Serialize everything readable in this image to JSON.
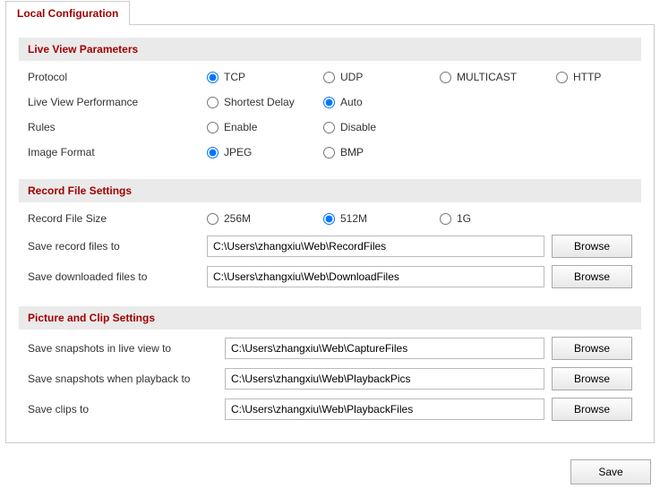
{
  "colors": {
    "accent": "#a00000",
    "section_bg": "#eaeaea",
    "border": "#cccccc",
    "button_border": "#aaaaaa",
    "input_border": "#bbbbbb"
  },
  "tab": {
    "label": "Local Configuration"
  },
  "sections": {
    "liveView": {
      "title": "Live View Parameters",
      "protocol": {
        "label": "Protocol",
        "options": {
          "tcp": "TCP",
          "udp": "UDP",
          "multicast": "MULTICAST",
          "http": "HTTP"
        },
        "selected": "tcp"
      },
      "performance": {
        "label": "Live View Performance",
        "options": {
          "shortest": "Shortest Delay",
          "auto": "Auto"
        },
        "selected": "auto"
      },
      "rules": {
        "label": "Rules",
        "options": {
          "enable": "Enable",
          "disable": "Disable"
        },
        "selected": ""
      },
      "imageFormat": {
        "label": "Image Format",
        "options": {
          "jpeg": "JPEG",
          "bmp": "BMP"
        },
        "selected": "jpeg"
      }
    },
    "record": {
      "title": "Record File Settings",
      "fileSize": {
        "label": "Record File Size",
        "options": {
          "s256": "256M",
          "s512": "512M",
          "s1g": "1G"
        },
        "selected": "s512"
      },
      "saveRecord": {
        "label": "Save record files to",
        "value": "C:\\Users\\zhangxiu\\Web\\RecordFiles",
        "button": "Browse"
      },
      "saveDownload": {
        "label": "Save downloaded files to",
        "value": "C:\\Users\\zhangxiu\\Web\\DownloadFiles",
        "button": "Browse"
      }
    },
    "picture": {
      "title": "Picture and Clip Settings",
      "liveSnap": {
        "label": "Save snapshots in live view to",
        "value": "C:\\Users\\zhangxiu\\Web\\CaptureFiles",
        "button": "Browse"
      },
      "playbackSnap": {
        "label": "Save snapshots when playback to",
        "value": "C:\\Users\\zhangxiu\\Web\\PlaybackPics",
        "button": "Browse"
      },
      "clips": {
        "label": "Save clips to",
        "value": "C:\\Users\\zhangxiu\\Web\\PlaybackFiles",
        "button": "Browse"
      }
    }
  },
  "saveButton": "Save"
}
